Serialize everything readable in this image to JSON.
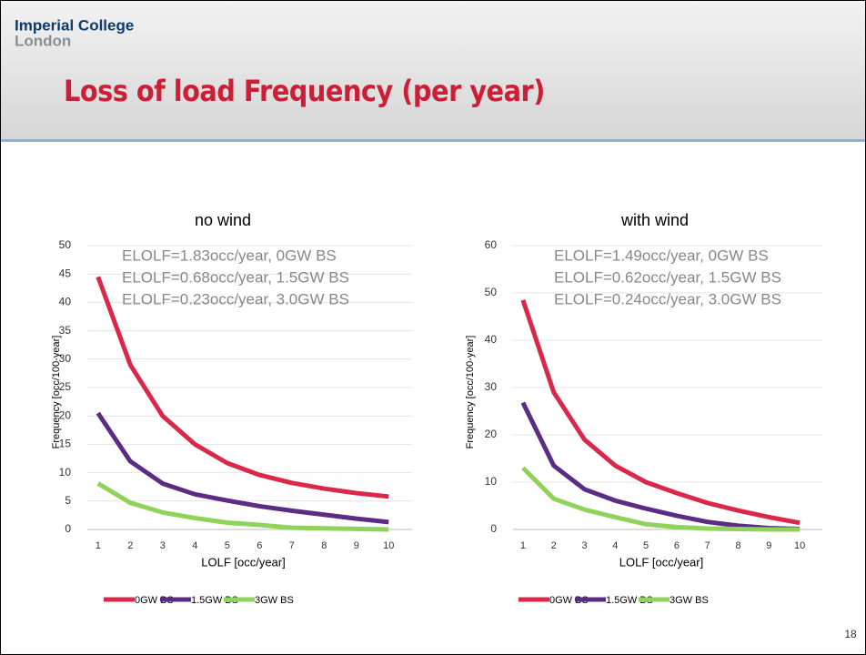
{
  "header": {
    "org": "Imperial College",
    "place": "London",
    "title": "Loss of load Frequency (per year)"
  },
  "slide_number": "18",
  "chart_data": [
    {
      "type": "line",
      "title": "no wind",
      "annotations": [
        "ELOLF=1.83occ/year, 0GW BS",
        "ELOLF=0.68occ/year, 1.5GW BS",
        "ELOLF=0.23occ/year, 3.0GW BS"
      ],
      "x_label": "LOLF [occ/year]",
      "y_label": "Frequency [occ/100-year]",
      "categories": [
        "1",
        "2",
        "3",
        "4",
        "5",
        "6",
        "7",
        "8",
        "9",
        "10"
      ],
      "series": [
        {
          "name": "0GW BS",
          "color": "#d9284a",
          "values": [
            44.5,
            29,
            20,
            15,
            11.7,
            9.6,
            8.2,
            7.2,
            6.4,
            5.8
          ]
        },
        {
          "name": "1.5GW BS",
          "color": "#5b2c82",
          "values": [
            20.5,
            12,
            8.1,
            6.2,
            5.1,
            4.1,
            3.3,
            2.6,
            1.9,
            1.3
          ]
        },
        {
          "name": "3GW BS",
          "color": "#8fd35a",
          "values": [
            8.1,
            4.7,
            3.0,
            2.0,
            1.2,
            0.8,
            0.3,
            0.2,
            0.1,
            0.0
          ]
        }
      ],
      "ylim": [
        0,
        50
      ],
      "yticks": [
        0,
        5,
        10,
        15,
        20,
        25,
        30,
        35,
        40,
        45,
        50
      ],
      "grid": true,
      "legend": "bottom"
    },
    {
      "type": "line",
      "title": "with wind",
      "annotations": [
        "ELOLF=1.49occ/year, 0GW BS",
        "ELOLF=0.62occ/year, 1.5GW BS",
        "ELOLF=0.24occ/year, 3.0GW BS"
      ],
      "x_label": "LOLF [occ/year]",
      "y_label": "Frequency [occ/100-year]",
      "categories": [
        "1",
        "2",
        "3",
        "4",
        "5",
        "6",
        "7",
        "8",
        "9",
        "10"
      ],
      "series": [
        {
          "name": "0GW BS",
          "color": "#d9284a",
          "values": [
            48.5,
            29,
            19,
            13.5,
            10,
            7.7,
            5.6,
            4,
            2.6,
            1.4
          ]
        },
        {
          "name": "1.5GW BS",
          "color": "#5b2c82",
          "values": [
            26.8,
            13.5,
            8.5,
            6.1,
            4.4,
            2.9,
            1.6,
            0.8,
            0.3,
            0.1
          ]
        },
        {
          "name": "3GW BS",
          "color": "#8fd35a",
          "values": [
            13,
            6.5,
            4.2,
            2.6,
            1.1,
            0.5,
            0.2,
            0.1,
            0.0,
            0.0
          ]
        }
      ],
      "ylim": [
        0,
        60
      ],
      "yticks": [
        0,
        10,
        20,
        30,
        40,
        50,
        60
      ],
      "grid": true,
      "legend": "bottom"
    }
  ]
}
